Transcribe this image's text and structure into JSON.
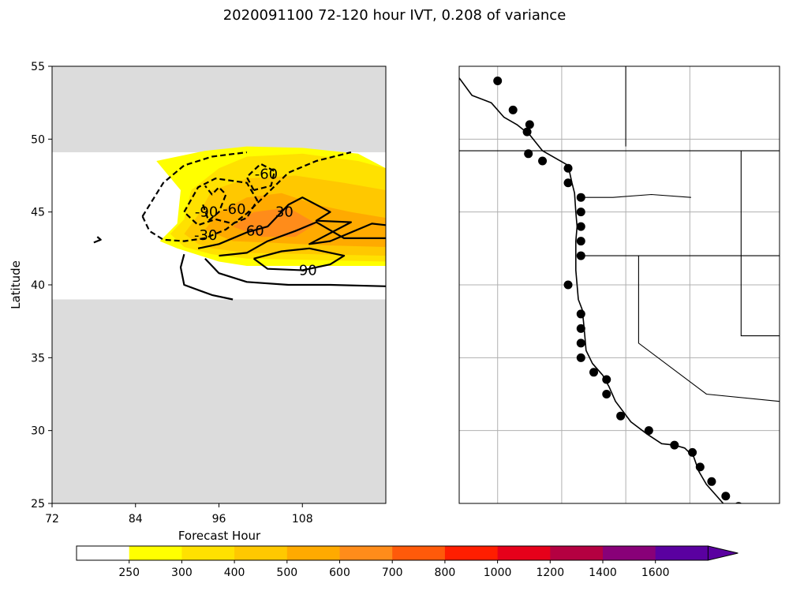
{
  "title": "2020091100 72-120 hour IVT, 0.208 of variance",
  "colors": {
    "background": "#ffffff",
    "masked": "#dcdcdc",
    "contour": "#000000",
    "grid": "#b0b0b0"
  },
  "chart_data": [
    {
      "type": "contour",
      "xlabel": "Forecast Hour",
      "ylabel": "Latitude",
      "xlim": [
        72,
        120
      ],
      "ylim": [
        25,
        55
      ],
      "xticks": [
        "72",
        "84",
        "96",
        "108"
      ],
      "yticks": [
        "25",
        "30",
        "35",
        "40",
        "45",
        "50",
        "55"
      ],
      "masked_lat_ranges": [
        [
          25,
          39
        ],
        [
          49.1,
          55
        ]
      ],
      "filled_regions": [
        {
          "level": 300,
          "color": "#ffff00",
          "points": [
            [
              87.5,
              43
            ],
            [
              90,
              44.2
            ],
            [
              90.5,
              46.5
            ],
            [
              87,
              48.5
            ],
            [
              94,
              49.2
            ],
            [
              100,
              49.5
            ],
            [
              108,
              49.4
            ],
            [
              116,
              49
            ],
            [
              120,
              48
            ],
            [
              120,
              41.3
            ],
            [
              110,
              41.3
            ],
            [
              100,
              41.3
            ],
            [
              96,
              41.6
            ],
            [
              90,
              42.5
            ]
          ]
        },
        {
          "level": 400,
          "color": "#ffe100",
          "points": [
            [
              89,
              43.5
            ],
            [
              91,
              44.5
            ],
            [
              92,
              46.5
            ],
            [
              96,
              48
            ],
            [
              100,
              48.8
            ],
            [
              108,
              49
            ],
            [
              116,
              48.5
            ],
            [
              120,
              48
            ],
            [
              120,
              41.6
            ],
            [
              110,
              41.7
            ],
            [
              100,
              41.8
            ],
            [
              95,
              42.1
            ],
            [
              91,
              42.6
            ]
          ]
        },
        {
          "level": 500,
          "color": "#ffc800",
          "points": [
            [
              91,
              43.5
            ],
            [
              93,
              44.8
            ],
            [
              95,
              46.5
            ],
            [
              100,
              47.3
            ],
            [
              107,
              47.5
            ],
            [
              114,
              47
            ],
            [
              120,
              46.5
            ],
            [
              120,
              42
            ],
            [
              110,
              42.1
            ],
            [
              100,
              42.2
            ],
            [
              95,
              42.5
            ],
            [
              93,
              42.8
            ]
          ]
        },
        {
          "level": 600,
          "color": "#ffaa00",
          "points": [
            [
              94,
              43.8
            ],
            [
              96,
              45
            ],
            [
              100,
              46
            ],
            [
              105,
              46.3
            ],
            [
              110,
              45.5
            ],
            [
              115,
              45
            ],
            [
              120,
              44.6
            ],
            [
              120,
              42.6
            ],
            [
              112,
              42.7
            ],
            [
              103,
              42.9
            ],
            [
              98,
              43
            ]
          ]
        },
        {
          "level": 700,
          "color": "#ff8c1a",
          "points": [
            [
              98,
              44
            ],
            [
              101,
              45
            ],
            [
              106,
              45.3
            ],
            [
              110,
              44.2
            ],
            [
              107,
              43.3
            ],
            [
              102,
              43.3
            ]
          ]
        }
      ],
      "contours": [
        {
          "label": "-60",
          "dashed": true,
          "points": [
            [
              101,
              46.5
            ],
            [
              100,
              47.4
            ],
            [
              102,
              48.3
            ],
            [
              104,
              47.8
            ],
            [
              103.5,
              46.8
            ],
            [
              101,
              46.5
            ]
          ]
        },
        {
          "label": "-90",
          "dashed": true,
          "points": [
            [
              93.7,
              45.5
            ],
            [
              94.5,
              44.4
            ],
            [
              96,
              45
            ],
            [
              97,
              46.2
            ],
            [
              96,
              46.7
            ],
            [
              95,
              46.2
            ],
            [
              94,
              46.8
            ]
          ]
        },
        {
          "label": "-60",
          "dashed": true,
          "points": [
            [
              91,
              45
            ],
            [
              93,
              46.7
            ],
            [
              95.5,
              47.3
            ],
            [
              100,
              47
            ],
            [
              101.5,
              45.8
            ],
            [
              100,
              44.6
            ],
            [
              98,
              44.2
            ],
            [
              95.5,
              44.5
            ],
            [
              93,
              44.1
            ],
            [
              91,
              45
            ]
          ]
        },
        {
          "label": "-30",
          "dashed": true,
          "points": [
            [
              85,
              44.7
            ],
            [
              88,
              47
            ],
            [
              91,
              48.2
            ],
            [
              95,
              48.8
            ],
            [
              100,
              49.1
            ]
          ]
        },
        {
          "label": "-30",
          "dashed": true,
          "points": [
            [
              85,
              44.7
            ],
            [
              86,
              43.7
            ],
            [
              88,
              43.1
            ],
            [
              91,
              43
            ],
            [
              94,
              43.2
            ],
            [
              97,
              43.8
            ],
            [
              100,
              44.9
            ],
            [
              103,
              46.3
            ],
            [
              106,
              47.7
            ],
            [
              110,
              48.5
            ],
            [
              115,
              49.1
            ]
          ]
        },
        {
          "label": "30",
          "dashed": false,
          "points": [
            [
              93,
              42.5
            ],
            [
              96,
              42.8
            ],
            [
              100,
              43.6
            ],
            [
              103,
              44
            ],
            [
              106,
              45.5
            ],
            [
              108,
              46
            ],
            [
              112,
              45
            ],
            [
              110,
              44.4
            ],
            [
              115,
              44.3
            ],
            [
              109,
              42.8
            ],
            [
              112,
              43
            ],
            [
              118,
              44.2
            ],
            [
              120,
              44.1
            ]
          ]
        },
        {
          "label": "60",
          "dashed": false,
          "points": [
            [
              96,
              42
            ],
            [
              100,
              42.2
            ],
            [
              103,
              43
            ],
            [
              107,
              43.7
            ],
            [
              110,
              44.3
            ],
            [
              114,
              43.2
            ],
            [
              120,
              43.2
            ]
          ]
        },
        {
          "label": "90",
          "dashed": false,
          "points": [
            [
              101,
              41.8
            ],
            [
              105,
              42.3
            ],
            [
              109,
              42.5
            ],
            [
              114,
              42
            ],
            [
              112,
              41.4
            ],
            [
              108,
              41
            ],
            [
              103,
              41.1
            ],
            [
              101,
              41.8
            ]
          ]
        },
        {
          "label": "",
          "dashed": false,
          "points": [
            [
              91,
              42.1
            ],
            [
              90.5,
              41.2
            ],
            [
              91,
              40
            ],
            [
              95,
              39.3
            ],
            [
              98,
              39
            ]
          ]
        },
        {
          "label": "",
          "dashed": false,
          "points": [
            [
              94,
              41.8
            ],
            [
              96,
              40.8
            ],
            [
              100,
              40.2
            ],
            [
              106,
              40
            ],
            [
              112,
              40
            ],
            [
              120,
              39.9
            ]
          ]
        },
        {
          "label": "",
          "dashed": false,
          "points": [
            [
              78,
              42.9
            ],
            [
              79,
              43.1
            ],
            [
              78.5,
              43.3
            ]
          ]
        }
      ],
      "contour_labels": [
        {
          "text": "-60",
          "x": 102.8,
          "y": 47.6
        },
        {
          "text": "-90",
          "x": 94.2,
          "y": 45.0
        },
        {
          "text": "-60",
          "x": 98.2,
          "y": 45.2
        },
        {
          "text": "-30",
          "x": 94.1,
          "y": 43.4
        },
        {
          "text": "30",
          "x": 105.4,
          "y": 45.0
        },
        {
          "text": "60",
          "x": 101.2,
          "y": 43.7
        },
        {
          "text": "90",
          "x": 108.8,
          "y": 41.0
        }
      ]
    },
    {
      "type": "map",
      "lon_range": [
        -140,
        -115
      ],
      "lat_range": [
        25,
        55
      ],
      "stations": [
        [
          -137,
          54
        ],
        [
          -135.8,
          52
        ],
        [
          -134.5,
          51
        ],
        [
          -134.7,
          50.5
        ],
        [
          -134.6,
          49
        ],
        [
          -133.5,
          48.5
        ],
        [
          -131.5,
          48
        ],
        [
          -131.5,
          47
        ],
        [
          -130.5,
          46
        ],
        [
          -130.5,
          45
        ],
        [
          -130.5,
          44
        ],
        [
          -130.5,
          43
        ],
        [
          -130.5,
          42
        ],
        [
          -131.5,
          40
        ],
        [
          -130.5,
          38
        ],
        [
          -130.5,
          37
        ],
        [
          -130.5,
          36
        ],
        [
          -130.5,
          35
        ],
        [
          -129.5,
          34
        ],
        [
          -128.5,
          33.5
        ],
        [
          -128.5,
          32.5
        ],
        [
          -127.4,
          31
        ],
        [
          -125.2,
          30
        ],
        [
          -123.2,
          29
        ],
        [
          -121.8,
          28.5
        ],
        [
          -121.2,
          27.5
        ],
        [
          -120.3,
          26.5
        ],
        [
          -119.2,
          25.5
        ],
        [
          -118.2,
          24.8
        ],
        [
          -117.8,
          24.5
        ],
        [
          -116.8,
          23.5
        ],
        [
          -115.5,
          22.5
        ],
        [
          -115.3,
          22
        ]
      ],
      "coastline": [
        [
          -140,
          54.2
        ],
        [
          -139,
          53
        ],
        [
          -137.5,
          52.5
        ],
        [
          -136.5,
          51.5
        ],
        [
          -135.5,
          51
        ],
        [
          -134.5,
          50.3
        ],
        [
          -133.5,
          49.2
        ],
        [
          -132.5,
          48.7
        ],
        [
          -131.5,
          48.2
        ],
        [
          -131.2,
          47
        ],
        [
          -131,
          46.3
        ],
        [
          -130.9,
          45
        ],
        [
          -130.8,
          44
        ],
        [
          -130.9,
          43
        ],
        [
          -130.9,
          42.2
        ],
        [
          -130.9,
          41
        ],
        [
          -130.8,
          40
        ],
        [
          -130.7,
          39
        ],
        [
          -130.4,
          38.3
        ],
        [
          -130.3,
          37.5
        ],
        [
          -130.2,
          36.5
        ],
        [
          -130.1,
          35.5
        ],
        [
          -129.6,
          34.6
        ],
        [
          -128.8,
          33.8
        ],
        [
          -128.3,
          33
        ],
        [
          -127.8,
          32
        ],
        [
          -126.6,
          30.6
        ],
        [
          -125.4,
          29.8
        ],
        [
          -124.2,
          29.1
        ],
        [
          -123.2,
          29
        ],
        [
          -122.4,
          28.8
        ],
        [
          -121.7,
          28.2
        ],
        [
          -121.3,
          27.2
        ],
        [
          -120.7,
          26.3
        ],
        [
          -120,
          25.6
        ],
        [
          -119.3,
          24.9
        ],
        [
          -118.7,
          24.1
        ],
        [
          -118,
          23.4
        ],
        [
          -117.3,
          22.8
        ],
        [
          -116.4,
          22.5
        ],
        [
          -115.5,
          22.3
        ],
        [
          -115,
          22
        ]
      ],
      "borders": [
        [
          [
            -140,
            49.2
          ],
          [
            -115,
            49.2
          ]
        ],
        [
          [
            -130.8,
            42
          ],
          [
            -115,
            42
          ]
        ],
        [
          [
            -126,
            42
          ],
          [
            -126,
            36
          ],
          [
            -120.7,
            32.5
          ],
          [
            -115,
            32
          ]
        ],
        [
          [
            -127,
            55
          ],
          [
            -127,
            49.5
          ]
        ],
        [
          [
            -118,
            49.2
          ],
          [
            -118,
            42
          ]
        ],
        [
          [
            -118,
            42
          ],
          [
            -118,
            36.5
          ],
          [
            -115,
            36.5
          ]
        ],
        [
          [
            -130.5,
            46
          ],
          [
            -128,
            46
          ],
          [
            -125,
            46.2
          ],
          [
            -121.9,
            46
          ]
        ]
      ]
    },
    {
      "type": "colorbar",
      "ticks": [
        "250",
        "300",
        "400",
        "500",
        "600",
        "700",
        "800",
        "1000",
        "1200",
        "1400",
        "1600"
      ],
      "colors": [
        "#ffffff",
        "#ffff00",
        "#ffe100",
        "#ffc800",
        "#ffaa00",
        "#ff8c1a",
        "#ff5a0a",
        "#ff1e00",
        "#e6001a",
        "#b40041",
        "#880078",
        "#5a00a0"
      ],
      "extend": "max"
    }
  ]
}
